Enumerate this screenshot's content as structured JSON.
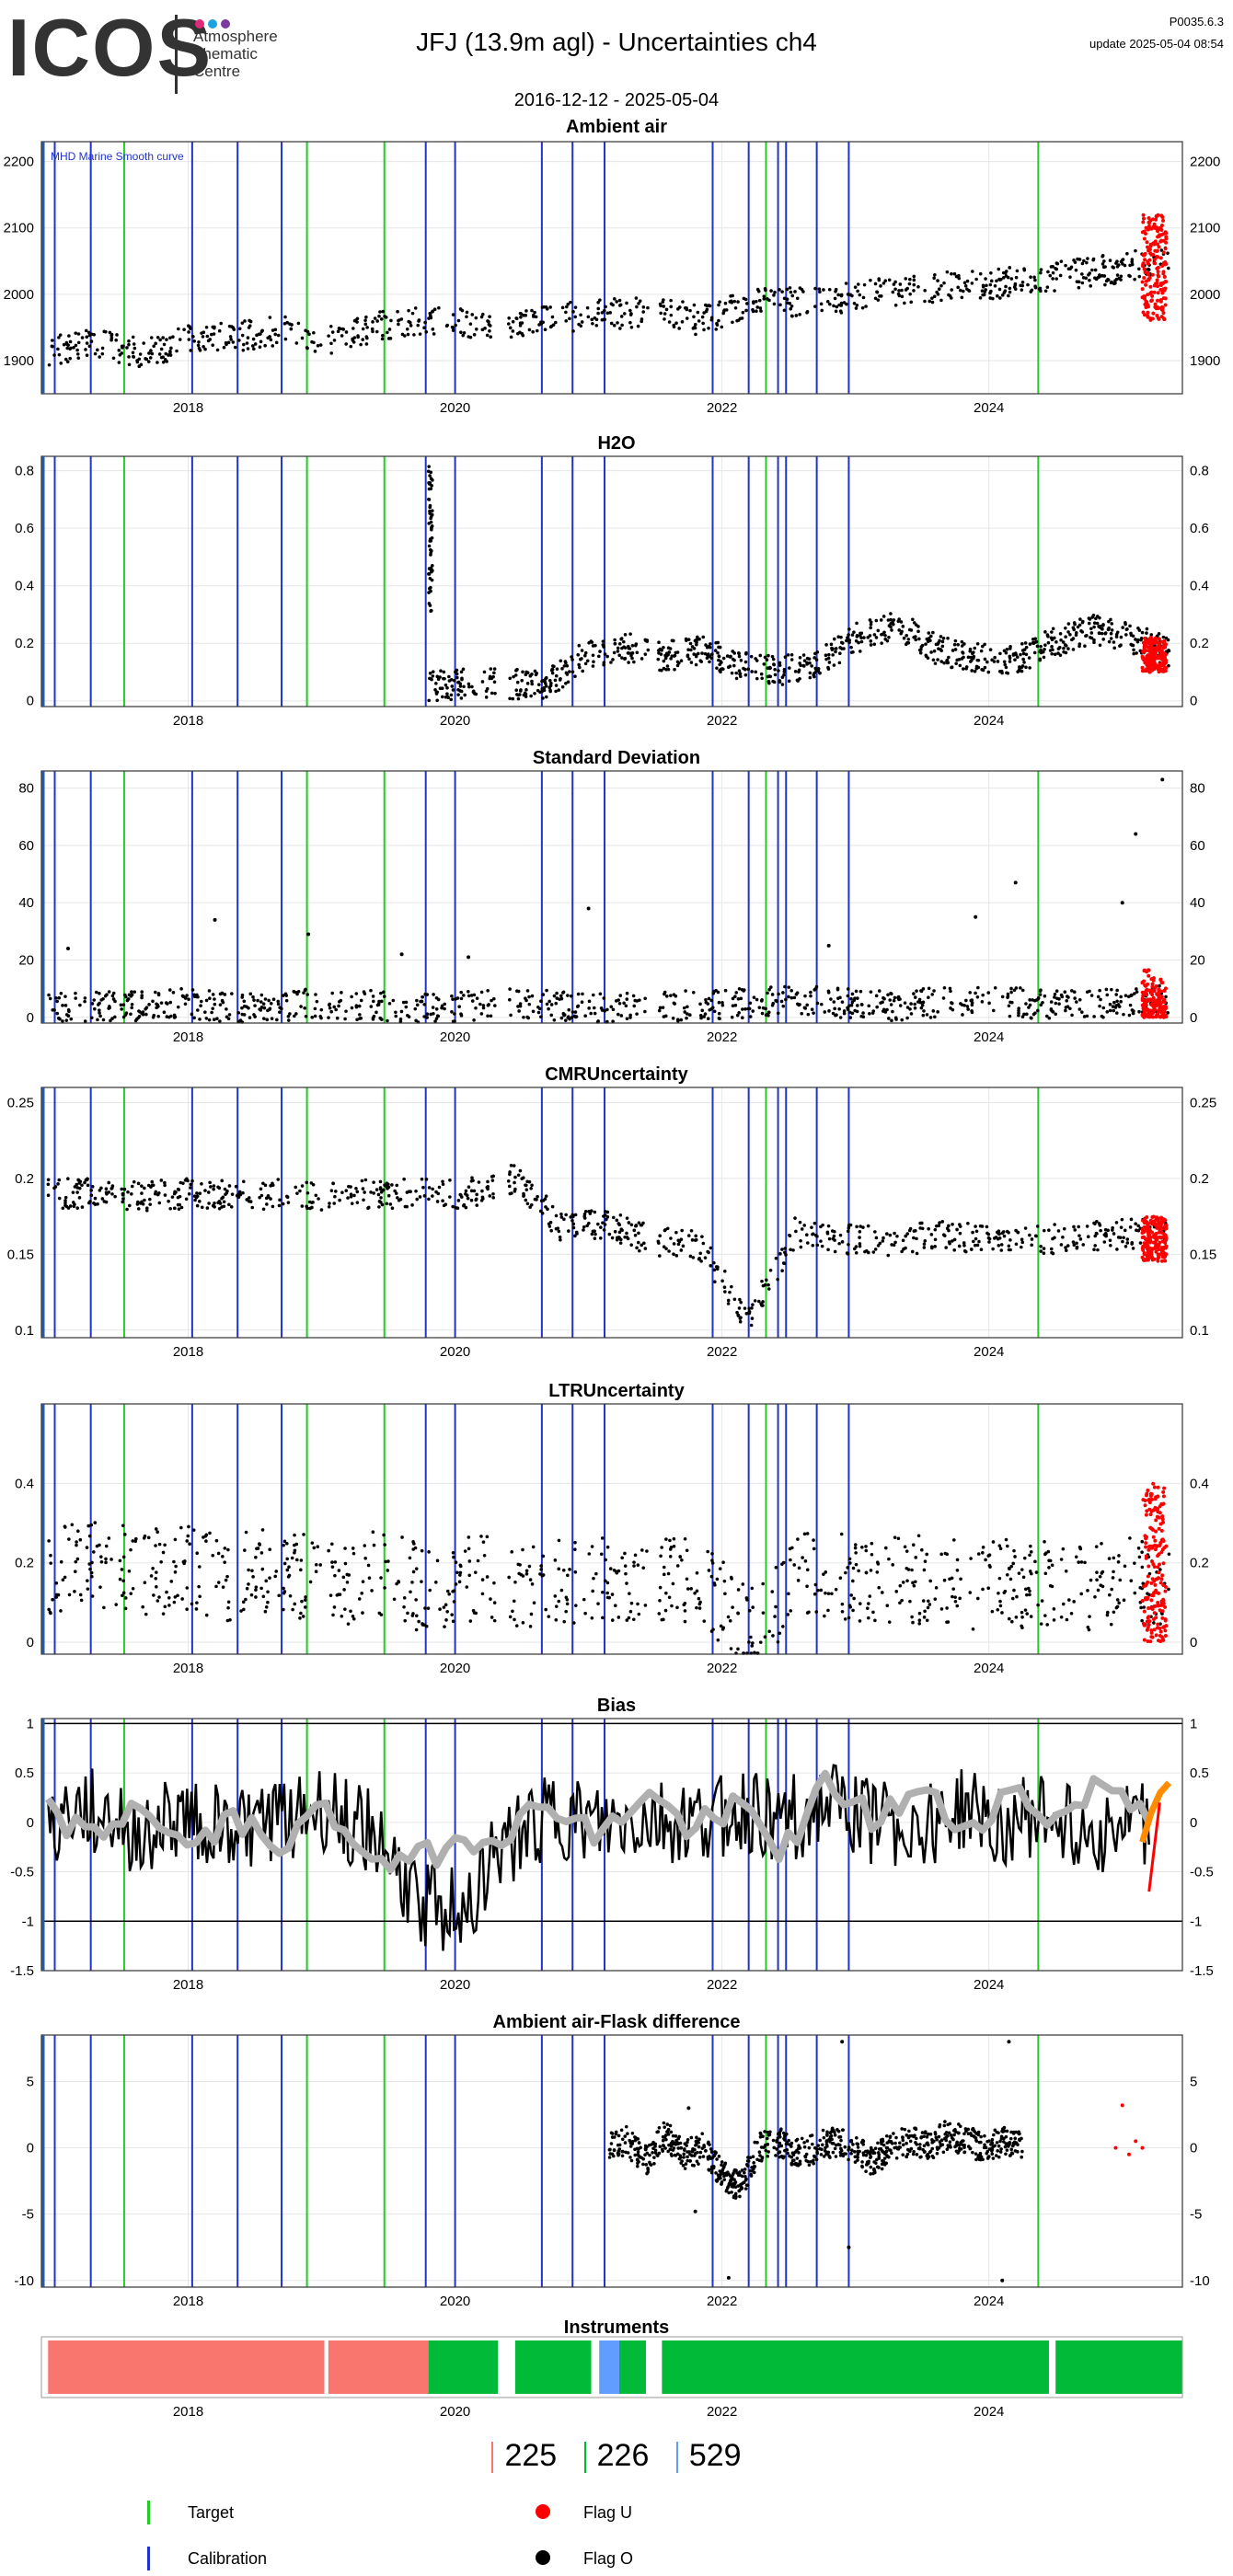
{
  "header": {
    "logo": "ICOS",
    "logo_sub": [
      "Atmosphere",
      "Thematic",
      "Centre"
    ],
    "title": "JFJ  (13.9m agl) - Uncertainties ch4",
    "version": "P0035.6.3",
    "update": "update  2025-05-04 08:54",
    "date_range": "2016-12-12 - 2025-05-04"
  },
  "colors": {
    "logo_dots": [
      "#e0287a",
      "#1aa3dc",
      "#7a3aa0"
    ],
    "target": "#22cc22",
    "calibration": "#2233cc",
    "flag_u": "#ff0000",
    "flag_o": "#000000",
    "smooth": "#b0b0b0",
    "bias_recent": "#ff8c00",
    "instrument_225": "#f8766d",
    "instrument_226": "#00ba38",
    "instrument_529": "#619cff"
  },
  "x_axis": {
    "ticks": [
      "2018",
      "2020",
      "2022",
      "2024"
    ]
  },
  "chart_data": [
    {
      "type": "scatter",
      "title": "Ambient air",
      "ylim": [
        1850,
        2230
      ],
      "yticks": [
        1900,
        2000,
        2100,
        2200
      ],
      "annotation": "MHD Marine Smooth curve",
      "series": [
        {
          "x_start": 2016.95,
          "x_end": 2025.35,
          "values": [
            1915,
            1925,
            1910,
            1930,
            1935,
            1945,
            1930,
            1950,
            1960,
            1955,
            1950,
            1965,
            1970,
            1975,
            1960,
            1985,
            1990,
            1995,
            2005,
            2010,
            2015,
            2020,
            2030,
            2040,
            2050
          ]
        }
      ],
      "flag_u_range": [
        1960,
        2120
      ]
    },
    {
      "type": "scatter",
      "title": "H2O",
      "ylim": [
        -0.02,
        0.85
      ],
      "yticks": [
        0.0,
        0.2,
        0.4,
        0.6,
        0.8
      ],
      "series": [
        {
          "x_start": 2019.8,
          "x_end": 2025.35,
          "values": [
            0.05,
            0.06,
            0.06,
            0.05,
            0.16,
            0.19,
            0.15,
            0.18,
            0.12,
            0.1,
            0.14,
            0.22,
            0.27,
            0.18,
            0.15,
            0.14,
            0.2,
            0.25,
            0.22,
            0.17
          ]
        }
      ],
      "spike_2019": [
        0.3,
        0.82
      ],
      "flag_u_range": [
        0.1,
        0.22
      ]
    },
    {
      "type": "scatter",
      "title": "Standard Deviation",
      "ylim": [
        -2,
        86
      ],
      "yticks": [
        0,
        20,
        40,
        60,
        80
      ],
      "series": [
        {
          "x_start": 2016.95,
          "x_end": 2025.35,
          "values": [
            3,
            4,
            4,
            5,
            3,
            4,
            5,
            4,
            3,
            4,
            5,
            4,
            3,
            4,
            4,
            5,
            6,
            5,
            4,
            5,
            6,
            5,
            4,
            5,
            6
          ]
        }
      ],
      "outliers": [
        [
          2017.1,
          24
        ],
        [
          2018.2,
          34
        ],
        [
          2018.9,
          29
        ],
        [
          2019.6,
          22
        ],
        [
          2020.1,
          21
        ],
        [
          2021.0,
          38
        ],
        [
          2022.8,
          25
        ],
        [
          2023.9,
          35
        ],
        [
          2024.2,
          47
        ],
        [
          2025.1,
          64
        ],
        [
          2025.0,
          40
        ],
        [
          2025.3,
          83
        ]
      ],
      "flag_u_range": [
        0,
        22
      ]
    },
    {
      "type": "scatter",
      "title": "CMRUncertainty",
      "ylim": [
        0.095,
        0.26
      ],
      "yticks": [
        0.1,
        0.15,
        0.2,
        0.25
      ],
      "series": [
        {
          "x_start": 2016.95,
          "x_end": 2025.35,
          "values": [
            0.19,
            0.19,
            0.188,
            0.19,
            0.189,
            0.19,
            0.188,
            0.19,
            0.19,
            0.19,
            0.2,
            0.168,
            0.17,
            0.158,
            0.155,
            0.106,
            0.165,
            0.16,
            0.158,
            0.162,
            0.16,
            0.158,
            0.162,
            0.163,
            0.165
          ]
        }
      ],
      "flag_u_range": [
        0.145,
        0.175
      ]
    },
    {
      "type": "scatter",
      "title": "LTRUncertainty",
      "ylim": [
        -0.03,
        0.6
      ],
      "yticks": [
        0.0,
        0.2,
        0.4
      ],
      "series": [
        {
          "x_start": 2016.95,
          "x_end": 2025.35,
          "values": [
            0.18,
            0.2,
            0.17,
            0.19,
            0.16,
            0.18,
            0.15,
            0.17,
            0.14,
            0.16,
            0.15,
            0.15,
            0.16,
            0.15,
            0.17,
            0.02,
            0.16,
            0.17,
            0.15,
            0.16,
            0.14,
            0.15,
            0.14,
            0.15,
            0.16
          ]
        }
      ],
      "flag_u_range": [
        0.0,
        0.4
      ]
    },
    {
      "type": "line",
      "title": "Bias",
      "ylim": [
        -1.5,
        1.05
      ],
      "yticks": [
        -1.5,
        -1.0,
        -0.5,
        0.0,
        0.5,
        1.0
      ],
      "hlines": [
        1.0,
        -1.0
      ],
      "series": [
        {
          "x_start": 2016.95,
          "x_end": 2025.2,
          "values": [
            0.0,
            0.1,
            -0.1,
            0.05,
            -0.05,
            0.0,
            0.1,
            -0.05,
            -0.8,
            -0.9,
            -0.2,
            0.05,
            -0.1,
            0.0,
            -0.05,
            0.1,
            0.0,
            0.15,
            0.0,
            -0.05,
            0.1,
            0.0,
            0.05,
            -0.1,
            0.0
          ]
        },
        {
          "x_start": 2016.95,
          "x_end": 2025.2,
          "values": [
            0.1,
            -0.2,
            0.2,
            -0.3,
            0.0,
            -0.2,
            0.1,
            -0.3,
            -0.4,
            -0.2,
            -0.1,
            0.2,
            -0.2,
            0.3,
            -0.1,
            0.2,
            -0.3,
            0.4,
            0.0,
            0.3,
            -0.1,
            0.3,
            0.0,
            0.4,
            0.1
          ]
        }
      ],
      "recent": {
        "x_start": 2025.15,
        "x_end": 2025.35,
        "values": [
          -0.2,
          0.1,
          0.3,
          0.4
        ]
      }
    },
    {
      "type": "scatter",
      "title": "Ambient air-Flask difference",
      "ylim": [
        -10.5,
        8.5
      ],
      "yticks": [
        -10,
        -5,
        0,
        5
      ],
      "series": [
        {
          "x_start": 2021.15,
          "x_end": 2024.25,
          "values": [
            0,
            0.5,
            -1,
            1,
            -0.5,
            0,
            -2,
            -3,
            0,
            0.5,
            -0.5,
            0,
            0.5,
            0,
            -1,
            0,
            0.5,
            0,
            1,
            0.5,
            0,
            0.5,
            0
          ]
        }
      ],
      "outliers": [
        [
          2021.75,
          3
        ],
        [
          2021.8,
          -4.8
        ],
        [
          2022.05,
          -9.8
        ],
        [
          2022.9,
          8
        ],
        [
          2022.95,
          -7.5
        ],
        [
          2024.15,
          8
        ],
        [
          2024.1,
          -10
        ]
      ],
      "flag_u_points": [
        [
          2025.0,
          3.2
        ],
        [
          2024.95,
          0
        ],
        [
          2025.05,
          -0.5
        ],
        [
          2025.1,
          0.5
        ],
        [
          2025.15,
          0
        ]
      ]
    }
  ],
  "markers": {
    "calibration_years": [
      2017.0,
      2017.27,
      2018.03,
      2018.37,
      2018.7,
      2019.78,
      2020.0,
      2020.65,
      2020.88,
      2021.12,
      2021.93,
      2022.2,
      2022.42,
      2022.48,
      2022.71,
      2022.95
    ],
    "target_years": [
      2017.52,
      2018.89,
      2019.47,
      2022.33,
      2024.37
    ]
  },
  "instruments": {
    "title": "Instruments",
    "segments": [
      {
        "id": "225",
        "start": 2016.95,
        "end": 2019.02
      },
      {
        "id": "225",
        "start": 2019.05,
        "end": 2019.8
      },
      {
        "id": "226",
        "start": 2019.8,
        "end": 2020.32
      },
      {
        "id": "226",
        "start": 2020.45,
        "end": 2021.02
      },
      {
        "id": "529",
        "start": 2021.08,
        "end": 2021.23
      },
      {
        "id": "226",
        "start": 2021.23,
        "end": 2021.43
      },
      {
        "id": "226",
        "start": 2021.55,
        "end": 2024.45
      },
      {
        "id": "226",
        "start": 2024.5,
        "end": 2025.45
      }
    ]
  },
  "counts": [
    {
      "id": "225",
      "label": "225"
    },
    {
      "id": "226",
      "label": "226"
    },
    {
      "id": "529",
      "label": "529"
    }
  ],
  "legend": {
    "target": "Target",
    "calibration": "Calibration",
    "flag_u": "Flag U",
    "flag_o": "Flag O"
  }
}
